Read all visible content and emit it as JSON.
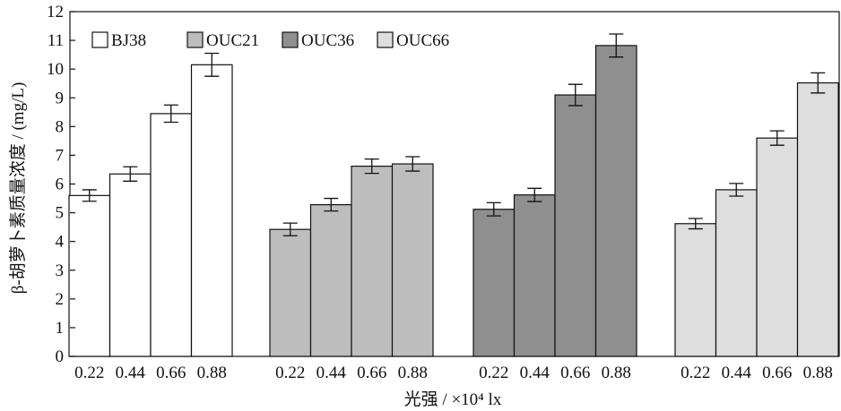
{
  "chart_data": {
    "type": "bar",
    "xlabel": "光强 / ×10⁴ lx",
    "ylabel": "β-胡萝卜素质量浓度 / (mg/L)",
    "ylim": [
      0,
      12
    ],
    "yticks": [
      0,
      1,
      2,
      3,
      4,
      5,
      6,
      7,
      8,
      9,
      10,
      11,
      12
    ],
    "grid": false,
    "legend_position": "top-left",
    "categories": [
      "0.22",
      "0.44",
      "0.66",
      "0.88"
    ],
    "series": [
      {
        "name": "BJ38",
        "color": "#ffffff",
        "values": [
          5.6,
          6.35,
          8.45,
          10.15
        ],
        "errors": [
          0.2,
          0.25,
          0.3,
          0.4
        ]
      },
      {
        "name": "OUC21",
        "color": "#bdbdbd",
        "values": [
          4.42,
          5.28,
          6.62,
          6.7
        ],
        "errors": [
          0.22,
          0.22,
          0.25,
          0.25
        ]
      },
      {
        "name": "OUC36",
        "color": "#8f8f8f",
        "values": [
          5.12,
          5.62,
          9.1,
          10.82
        ],
        "errors": [
          0.23,
          0.23,
          0.37,
          0.4
        ]
      },
      {
        "name": "OUC66",
        "color": "#dedede",
        "values": [
          4.62,
          5.8,
          7.6,
          9.52
        ],
        "errors": [
          0.18,
          0.22,
          0.25,
          0.35
        ]
      }
    ]
  }
}
